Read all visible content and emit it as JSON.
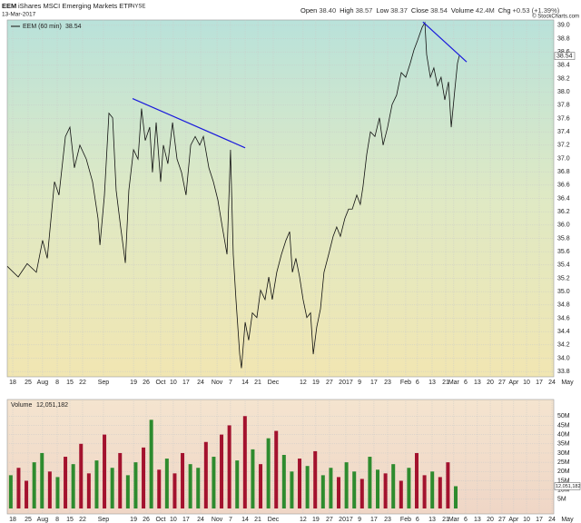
{
  "header": {
    "symbol": "EEM",
    "name": "iShares MSCI Emerging Markets ETF",
    "exchange": "NYSE",
    "date": "13-Mar-2017",
    "quote": [
      {
        "label": "Open",
        "value": "38.40"
      },
      {
        "label": "High",
        "value": "38.57"
      },
      {
        "label": "Low",
        "value": "38.37"
      },
      {
        "label": "Close",
        "value": "38.54"
      },
      {
        "label": "Volume",
        "value": "42.4M"
      },
      {
        "label": "Chg",
        "value": "+0.53 (+1.39%)"
      }
    ],
    "credit": "© StockCharts.com"
  },
  "chart_data": [
    {
      "type": "line",
      "xlim": [
        -2.8,
        289.8
      ],
      "ylim": [
        33.72,
        39.08
      ],
      "grid": true,
      "yticks": [
        33.8,
        {
          "value": 34,
          "label": "34.0"
        },
        34.2,
        34.4,
        34.6,
        34.8,
        {
          "value": 35,
          "label": "35.0"
        },
        35.2,
        35.4,
        35.6,
        35.8,
        {
          "value": 36,
          "label": "36.0"
        },
        36.2,
        36.4,
        36.6,
        36.8,
        {
          "value": 37,
          "label": "37.0"
        },
        37.2,
        37.4,
        37.6,
        37.8,
        {
          "value": 38,
          "label": "38.0"
        },
        38.2,
        38.4,
        38.6,
        38.8,
        {
          "value": 39,
          "label": "39.0"
        }
      ],
      "xticks": [
        {
          "value": 0,
          "label": "18"
        },
        {
          "value": 7.9,
          "label": "25"
        },
        {
          "value": 15.3,
          "label": "Aug"
        },
        {
          "value": 22.8,
          "label": "8"
        },
        {
          "value": 29.3,
          "label": "15"
        },
        {
          "value": 35.8,
          "label": "22"
        },
        {
          "value": 46.5,
          "label": "Sep"
        },
        {
          "value": 61.9,
          "label": "19"
        },
        {
          "value": 68.4,
          "label": "26"
        },
        {
          "value": 75.8,
          "label": "Oct"
        },
        {
          "value": 82.3,
          "label": "10"
        },
        {
          "value": 88.8,
          "label": "17"
        },
        {
          "value": 96.3,
          "label": "24"
        },
        {
          "value": 104.7,
          "label": "Nov"
        },
        {
          "value": 111.6,
          "label": "7"
        },
        {
          "value": 119.1,
          "label": "14"
        },
        {
          "value": 125.6,
          "label": "21"
        },
        {
          "value": 133.5,
          "label": "Dec"
        },
        {
          "value": 148.8,
          "label": "12"
        },
        {
          "value": 155.3,
          "label": "19"
        },
        {
          "value": 162.3,
          "label": "27"
        },
        {
          "value": 170.7,
          "label": "2017"
        },
        {
          "value": 177.7,
          "label": "9"
        },
        {
          "value": 185.1,
          "label": "17"
        },
        {
          "value": 192.1,
          "label": "23"
        },
        {
          "value": 201.4,
          "label": "Feb"
        },
        {
          "value": 207.4,
          "label": "6"
        },
        {
          "value": 214.9,
          "label": "13"
        },
        {
          "value": 221.9,
          "label": "21"
        },
        {
          "value": 226,
          "label": "Mar"
        },
        {
          "value": 232.1,
          "label": "6"
        },
        {
          "value": 238.1,
          "label": "13"
        },
        {
          "value": 244.7,
          "label": "20"
        },
        {
          "value": 250.7,
          "label": "27"
        },
        {
          "value": 256.7,
          "label": "Apr"
        },
        {
          "value": 263.3,
          "label": "10"
        },
        {
          "value": 269.8,
          "label": "17"
        },
        {
          "value": 276.3,
          "label": "24"
        },
        {
          "value": 284.2,
          "label": "May"
        }
      ],
      "series": [
        {
          "name": "EEM (60 min)",
          "color": "#111111",
          "x": [
            -2.8,
            2.8,
            7.4,
            12.1,
            15.3,
            17.7,
            21.4,
            23.7,
            27,
            29.3,
            31.6,
            34.4,
            37.7,
            40.9,
            43.7,
            44.7,
            47,
            49.3,
            51.2,
            53,
            55.3,
            57.7,
            59.5,
            61.9,
            64.2,
            66,
            67.9,
            70.2,
            71.6,
            73.5,
            75.8,
            77.2,
            79.5,
            81.9,
            84.2,
            86.5,
            88.8,
            91.2,
            93.5,
            95.8,
            97.7,
            100.5,
            102.8,
            105.1,
            107.4,
            109.8,
            111.6,
            113,
            114.4,
            116.3,
            117.2,
            119.1,
            120.9,
            122.8,
            125.1,
            127,
            129.3,
            131.2,
            133,
            135.3,
            137.7,
            140,
            141.9,
            143.3,
            145.1,
            147,
            148.8,
            150.7,
            152.6,
            154,
            155.8,
            157.7,
            159.5,
            161.9,
            164.2,
            166,
            167.9,
            170.2,
            172.1,
            174,
            176.3,
            178.1,
            179.5,
            181.4,
            183.3,
            185.6,
            187.9,
            189.8,
            192.1,
            194.4,
            196.7,
            199.1,
            201.4,
            203.7,
            205.6,
            207.4,
            209.8,
            211.2,
            212.1,
            214,
            215.8,
            217.7,
            219.5,
            221.4,
            223.3,
            224.7,
            226.5,
            227.9,
            228.8
          ],
          "values": [
            35.38,
            35.22,
            35.42,
            35.29,
            35.77,
            35.5,
            36.65,
            36.45,
            37.33,
            37.47,
            36.86,
            37.2,
            36.99,
            36.65,
            36.1,
            35.7,
            36.45,
            37.68,
            37.61,
            36.52,
            35.97,
            35.43,
            36.52,
            37.13,
            36.99,
            37.75,
            37.27,
            37.47,
            36.79,
            37.54,
            36.65,
            37.2,
            36.92,
            37.54,
            36.99,
            36.79,
            36.45,
            37.2,
            37.33,
            37.2,
            37.33,
            36.86,
            36.65,
            36.38,
            35.97,
            35.56,
            37.13,
            35.56,
            34.88,
            34.06,
            33.85,
            34.54,
            34.27,
            34.68,
            34.61,
            35.02,
            34.88,
            35.22,
            34.88,
            35.29,
            35.56,
            35.77,
            35.9,
            35.29,
            35.5,
            35.22,
            34.88,
            34.61,
            34.68,
            34.06,
            34.47,
            34.74,
            35.29,
            35.56,
            35.83,
            35.97,
            35.83,
            36.1,
            36.24,
            36.24,
            36.45,
            36.31,
            36.58,
            37.06,
            37.4,
            37.33,
            37.61,
            37.2,
            37.47,
            37.81,
            37.95,
            38.29,
            38.22,
            38.43,
            38.63,
            38.77,
            38.97,
            39.04,
            38.56,
            38.22,
            38.36,
            38.09,
            38.22,
            37.88,
            38.15,
            37.47,
            38.02,
            38.43,
            38.54
          ]
        }
      ],
      "trend_lines": [
        {
          "color": "#1a1adc",
          "x": [
            61.4,
            119.1
          ],
          "y": [
            37.9,
            37.16
          ]
        },
        {
          "color": "#1a1adc",
          "x": [
            210.2,
            232.6
          ],
          "y": [
            39.05,
            38.45
          ]
        }
      ]
    },
    {
      "type": "bar",
      "xlim": [
        -2.8,
        289.8
      ],
      "ylim": [
        0,
        58000000
      ],
      "grid": true,
      "yticks": [
        {
          "value": 5000000,
          "label": "5M"
        },
        {
          "value": 10000000,
          "label": "10M"
        },
        {
          "value": 15000000,
          "label": "15M"
        },
        {
          "value": 20000000,
          "label": "20M"
        },
        {
          "value": 25000000,
          "label": "25M"
        },
        {
          "value": 30000000,
          "label": "30M"
        },
        {
          "value": 35000000,
          "label": "35M"
        },
        {
          "value": 40000000,
          "label": "40M"
        },
        {
          "value": 45000000,
          "label": "45M"
        },
        {
          "value": 50000000,
          "label": "50M"
        }
      ],
      "series": [
        {
          "name": "Volume",
          "x": [
            -1,
            3,
            7,
            11,
            15,
            19,
            23,
            27,
            31,
            35,
            39,
            43,
            47,
            51,
            55,
            59,
            63,
            67,
            71,
            75,
            79,
            83,
            87,
            91,
            95,
            99,
            103,
            107,
            111,
            115,
            119,
            123,
            127,
            131,
            135,
            139,
            143,
            147,
            151,
            155,
            159,
            163,
            167,
            171,
            175,
            179,
            183,
            187,
            191,
            195,
            199,
            203,
            207,
            211,
            215,
            219,
            223,
            227
          ],
          "values": [
            18000000,
            22000000,
            15000000,
            25000000,
            30000000,
            20000000,
            17000000,
            28000000,
            24000000,
            35000000,
            19000000,
            26000000,
            40000000,
            22000000,
            30000000,
            18000000,
            25000000,
            33000000,
            48000000,
            21000000,
            27000000,
            19000000,
            30000000,
            24000000,
            22000000,
            36000000,
            28000000,
            40000000,
            45000000,
            26000000,
            50000000,
            32000000,
            24000000,
            38000000,
            42000000,
            29000000,
            20000000,
            27000000,
            23000000,
            31000000,
            18000000,
            22000000,
            17000000,
            25000000,
            20000000,
            16000000,
            28000000,
            21000000,
            19000000,
            24000000,
            15000000,
            22000000,
            30000000,
            18000000,
            20000000,
            17000000,
            25000000,
            12051182
          ],
          "colors": [
            "#2e8b2e",
            "#a3122e",
            "#a3122e",
            "#2e8b2e",
            "#2e8b2e",
            "#a3122e",
            "#2e8b2e",
            "#a3122e",
            "#2e8b2e",
            "#a3122e",
            "#a3122e",
            "#2e8b2e",
            "#a3122e",
            "#2e8b2e",
            "#a3122e",
            "#2e8b2e",
            "#2e8b2e",
            "#a3122e",
            "#2e8b2e",
            "#a3122e",
            "#2e8b2e",
            "#a3122e",
            "#a3122e",
            "#2e8b2e",
            "#2e8b2e",
            "#a3122e",
            "#2e8b2e",
            "#a3122e",
            "#a3122e",
            "#2e8b2e",
            "#a3122e",
            "#2e8b2e",
            "#a3122e",
            "#2e8b2e",
            "#a3122e",
            "#2e8b2e",
            "#2e8b2e",
            "#a3122e",
            "#2e8b2e",
            "#a3122e",
            "#2e8b2e",
            "#2e8b2e",
            "#a3122e",
            "#2e8b2e",
            "#2e8b2e",
            "#a3122e",
            "#2e8b2e",
            "#2e8b2e",
            "#a3122e",
            "#2e8b2e",
            "#a3122e",
            "#2e8b2e",
            "#a3122e",
            "#a3122e",
            "#2e8b2e",
            "#a3122e",
            "#a3122e",
            "#2e8b2e"
          ]
        }
      ],
      "current": {
        "value": 12051182,
        "label": "12,051,182"
      }
    }
  ]
}
